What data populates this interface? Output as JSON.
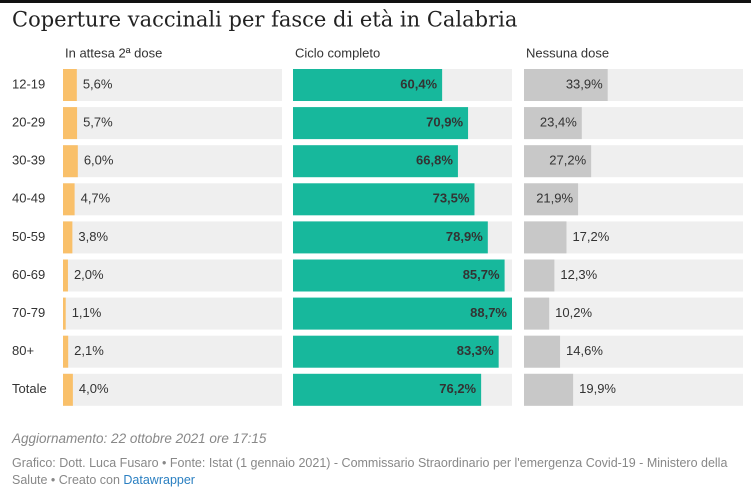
{
  "chart_data": {
    "type": "split-bar",
    "title": "Coperture vaccinali per fasce di età in Calabria",
    "categories": [
      "12-19",
      "20-29",
      "30-39",
      "40-49",
      "50-59",
      "60-69",
      "70-79",
      "80+",
      "Totale"
    ],
    "series": [
      {
        "name": "In attesa 2ª dose",
        "color": "#f9c06a",
        "values": [
          5.6,
          5.7,
          6.0,
          4.7,
          3.8,
          2.0,
          1.1,
          2.1,
          4.0
        ],
        "value_labels": [
          "5,6%",
          "5,7%",
          "6,0%",
          "4,7%",
          "3,8%",
          "2,0%",
          "1,1%",
          "2,1%",
          "4,0%"
        ]
      },
      {
        "name": "Ciclo completo",
        "color": "#17b89c",
        "values": [
          60.4,
          70.9,
          66.8,
          73.5,
          78.9,
          85.7,
          88.7,
          83.3,
          76.2
        ],
        "value_labels": [
          "60,4%",
          "70,9%",
          "66,8%",
          "73,5%",
          "78,9%",
          "85,7%",
          "88,7%",
          "83,3%",
          "76,2%"
        ]
      },
      {
        "name": "Nessuna dose",
        "color": "#c8c8c8",
        "values": [
          33.9,
          23.4,
          27.2,
          21.9,
          17.2,
          12.3,
          10.2,
          14.6,
          19.9
        ],
        "value_labels": [
          "33,9%",
          "23,4%",
          "27,2%",
          "21,9%",
          "17,2%",
          "12,3%",
          "10,2%",
          "14,6%",
          "19,9%"
        ]
      }
    ],
    "notes": "Aggiornamento: 22 ottobre 2021 ore 17:15",
    "source": "Grafico: Dott. Luca Fusaro • Fonte: Istat (1 gennaio 2021) - Commissario Straordinario per l'emergenza Covid-19 - Ministero della Salute • Creato con",
    "credit": "Datawrapper"
  }
}
